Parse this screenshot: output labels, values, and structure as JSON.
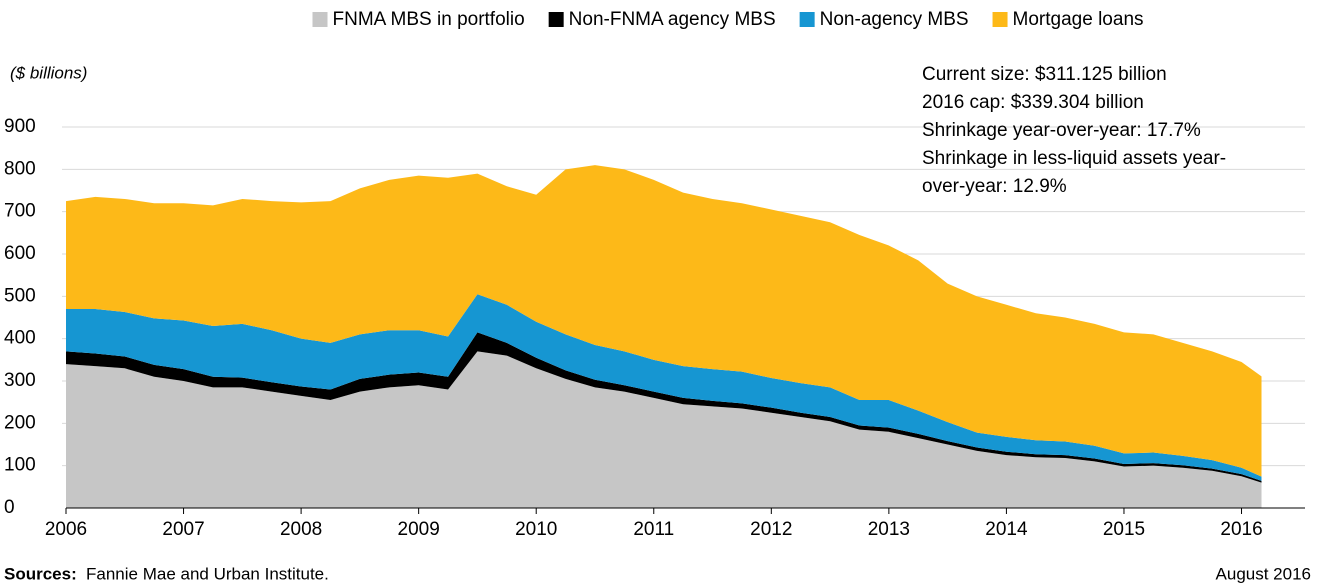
{
  "chart_data": {
    "type": "stacked-area",
    "y_label": "($ billions)",
    "x": [
      2006,
      2006.25,
      2006.5,
      2006.75,
      2007,
      2007.25,
      2007.5,
      2007.75,
      2008,
      2008.25,
      2008.5,
      2008.75,
      2009,
      2009.25,
      2009.5,
      2009.75,
      2010,
      2010.25,
      2010.5,
      2010.75,
      2011,
      2011.25,
      2011.5,
      2011.75,
      2012,
      2012.25,
      2012.5,
      2012.75,
      2013,
      2013.25,
      2013.5,
      2013.75,
      2014,
      2014.25,
      2014.5,
      2014.75,
      2015,
      2015.25,
      2015.5,
      2015.75,
      2016,
      2016.17
    ],
    "series": [
      {
        "name": "FNMA MBS in portfolio",
        "color": "#c6c6c6",
        "values": [
          340,
          335,
          330,
          310,
          300,
          285,
          285,
          275,
          265,
          255,
          275,
          285,
          290,
          280,
          370,
          360,
          330,
          305,
          285,
          275,
          260,
          245,
          240,
          235,
          225,
          215,
          205,
          185,
          180,
          165,
          150,
          135,
          125,
          120,
          118,
          110,
          98,
          100,
          95,
          88,
          75,
          60
        ]
      },
      {
        "name": "Non-FNMA agency MBS",
        "color": "#000000",
        "values": [
          30,
          30,
          28,
          28,
          28,
          25,
          23,
          22,
          22,
          25,
          30,
          30,
          30,
          30,
          45,
          30,
          25,
          20,
          18,
          15,
          15,
          15,
          13,
          12,
          12,
          10,
          10,
          10,
          10,
          10,
          8,
          8,
          8,
          7,
          7,
          7,
          6,
          6,
          6,
          5,
          5,
          4
        ]
      },
      {
        "name": "Non-agency MBS",
        "color": "#1696d2",
        "values": [
          100,
          105,
          105,
          110,
          115,
          120,
          127,
          123,
          113,
          110,
          105,
          105,
          100,
          95,
          90,
          90,
          85,
          85,
          82,
          80,
          75,
          75,
          75,
          75,
          70,
          70,
          70,
          60,
          65,
          55,
          45,
          35,
          35,
          33,
          32,
          30,
          25,
          25,
          22,
          20,
          15,
          10
        ]
      },
      {
        "name": "Mortgage loans",
        "color": "#fdb918",
        "values": [
          255,
          265,
          267,
          272,
          277,
          285,
          295,
          305,
          322,
          335,
          345,
          355,
          365,
          375,
          285,
          280,
          300,
          390,
          425,
          430,
          425,
          410,
          402,
          398,
          398,
          395,
          390,
          390,
          365,
          355,
          327,
          322,
          312,
          300,
          293,
          288,
          286,
          279,
          267,
          257,
          250,
          237
        ]
      }
    ],
    "xlim": [
      2006,
      2016.54
    ],
    "xticks": [
      2006,
      2007,
      2008,
      2009,
      2010,
      2011,
      2012,
      2013,
      2014,
      2015,
      2016
    ],
    "ylim": [
      0,
      900
    ],
    "yticks": [
      0,
      100,
      200,
      300,
      400,
      500,
      600,
      700,
      800,
      900
    ],
    "grid": true,
    "legend": "top",
    "annotation": [
      "Current size: $311.125 billion",
      "2016 cap: $339.304 billion",
      "Shrinkage year-over-year: 17.7%",
      "Shrinkage in less-liquid assets year-",
      "over-year: 12.9%"
    ],
    "source_label": "Sources:",
    "source": "Fannie Mae and Urban Institute.",
    "date": "August 2016"
  }
}
